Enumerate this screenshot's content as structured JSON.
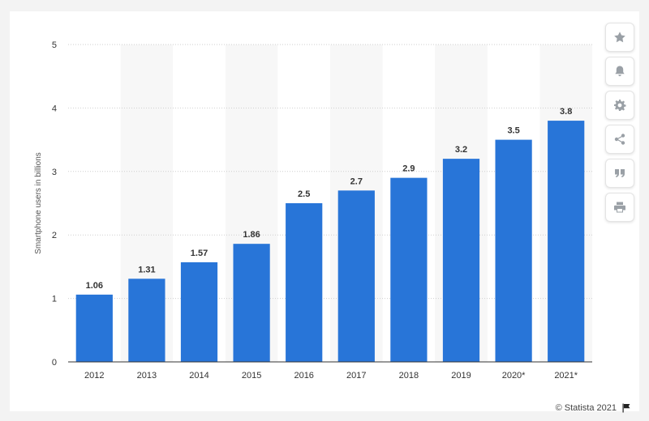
{
  "chart_data": {
    "type": "bar",
    "categories": [
      "2012",
      "2013",
      "2014",
      "2015",
      "2016",
      "2017",
      "2018",
      "2019",
      "2020*",
      "2021*"
    ],
    "values": [
      1.06,
      1.31,
      1.57,
      1.86,
      2.5,
      2.7,
      2.9,
      3.2,
      3.5,
      3.8
    ],
    "value_labels": [
      "1.06",
      "1.31",
      "1.57",
      "1.86",
      "2.5",
      "2.7",
      "2.9",
      "3.2",
      "3.5",
      "3.8"
    ],
    "ylabel": "Smartphone users in billions",
    "xlabel": "",
    "ylim": [
      0,
      5
    ],
    "yticks": [
      "0",
      "1",
      "2",
      "3",
      "4",
      "5"
    ],
    "grid": "horizontal dotted",
    "bar_color": "#2875d8",
    "alt_band_color": "#f7f7f7"
  },
  "toolbar": {
    "buttons": [
      {
        "icon": "star-icon",
        "name": "favorite-button"
      },
      {
        "icon": "bell-icon",
        "name": "notification-button"
      },
      {
        "icon": "gear-icon",
        "name": "settings-button"
      },
      {
        "icon": "share-icon",
        "name": "share-button"
      },
      {
        "icon": "quote-icon",
        "name": "cite-button"
      },
      {
        "icon": "print-icon",
        "name": "print-button"
      }
    ]
  },
  "footer": {
    "credit": "© Statista 2021"
  }
}
